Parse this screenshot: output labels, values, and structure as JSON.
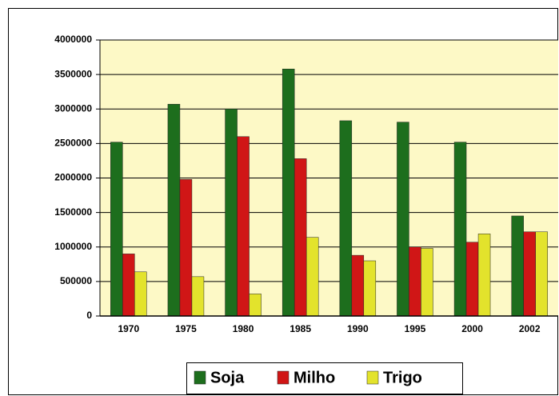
{
  "chart_data": {
    "type": "bar",
    "categories": [
      "1970",
      "1975",
      "1980",
      "1985",
      "1990",
      "1995",
      "2000",
      "2002"
    ],
    "series": [
      {
        "name": "Soja",
        "color": "#1d6e1d",
        "values": [
          2520000,
          3070000,
          3000000,
          3580000,
          2830000,
          2810000,
          2520000,
          1450000
        ]
      },
      {
        "name": "Milho",
        "color": "#d01616",
        "values": [
          900000,
          1980000,
          2600000,
          2280000,
          880000,
          1000000,
          1070000,
          1220000
        ]
      },
      {
        "name": "Trigo",
        "color": "#e3e32c",
        "values": [
          640000,
          570000,
          320000,
          1140000,
          800000,
          980000,
          1190000,
          1220000
        ]
      }
    ],
    "ylim": [
      0,
      4000000
    ],
    "yticks": [
      0,
      500000,
      1000000,
      1500000,
      2000000,
      2500000,
      3000000,
      3500000,
      4000000
    ],
    "grid": true,
    "legend": "bottom"
  }
}
